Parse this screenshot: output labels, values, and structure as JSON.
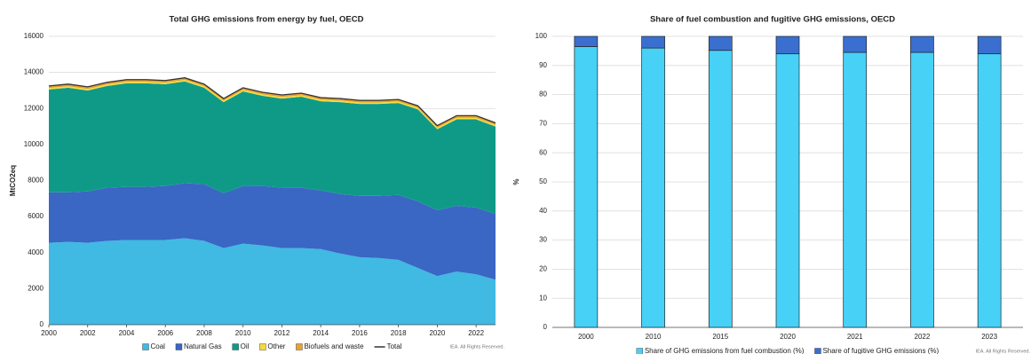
{
  "chart_data": [
    {
      "type": "area",
      "title": "Total GHG emissions from energy by fuel, OECD",
      "y_label": "MtCO2eq",
      "x": [
        2000,
        2001,
        2002,
        2003,
        2004,
        2005,
        2006,
        2007,
        2008,
        2009,
        2010,
        2011,
        2012,
        2013,
        2014,
        2015,
        2016,
        2017,
        2018,
        2019,
        2020,
        2021,
        2022,
        2023
      ],
      "xlim": [
        2000,
        2023
      ],
      "xticks": [
        2000,
        2002,
        2004,
        2006,
        2008,
        2010,
        2012,
        2014,
        2016,
        2018,
        2020,
        2022
      ],
      "ylim": [
        0,
        16000
      ],
      "yticks": [
        0,
        2000,
        4000,
        6000,
        8000,
        10000,
        12000,
        14000,
        16000
      ],
      "grid": true,
      "series": [
        {
          "name": "Coal",
          "color": "#40b9e3",
          "values": [
            4550,
            4600,
            4550,
            4650,
            4700,
            4700,
            4700,
            4800,
            4650,
            4250,
            4500,
            4400,
            4250,
            4250,
            4200,
            3950,
            3750,
            3700,
            3600,
            3150,
            2700,
            2950,
            2800,
            2500
          ]
        },
        {
          "name": "Natural Gas",
          "color": "#3a66c4",
          "values": [
            2800,
            2750,
            2850,
            2950,
            2950,
            2950,
            3000,
            3050,
            3150,
            3050,
            3200,
            3300,
            3350,
            3350,
            3250,
            3300,
            3400,
            3450,
            3600,
            3700,
            3650,
            3650,
            3700,
            3650
          ]
        },
        {
          "name": "Oil",
          "color": "#0f9a88",
          "values": [
            5700,
            5800,
            5600,
            5650,
            5750,
            5750,
            5650,
            5650,
            5350,
            5050,
            5250,
            5000,
            4950,
            5050,
            4950,
            5100,
            5100,
            5100,
            5100,
            5100,
            4500,
            4800,
            4900,
            4850
          ]
        },
        {
          "name": "Other",
          "color": "#f2dc3c",
          "values": [
            80,
            80,
            80,
            80,
            80,
            80,
            80,
            80,
            80,
            80,
            80,
            80,
            80,
            80,
            80,
            80,
            80,
            80,
            80,
            80,
            80,
            80,
            80,
            80
          ]
        },
        {
          "name": "Biofuels and waste",
          "color": "#e8a232",
          "values": [
            120,
            120,
            120,
            120,
            120,
            120,
            120,
            120,
            120,
            120,
            120,
            120,
            120,
            120,
            120,
            120,
            120,
            120,
            120,
            120,
            120,
            120,
            120,
            120
          ]
        },
        {
          "name": "Total",
          "color": "#333333",
          "kind": "line",
          "values": [
            13250,
            13350,
            13200,
            13450,
            13600,
            13600,
            13550,
            13700,
            13350,
            12550,
            13150,
            12900,
            12750,
            12850,
            12600,
            12550,
            12450,
            12450,
            12500,
            12150,
            11050,
            11600,
            11600,
            11200
          ]
        }
      ],
      "note": "IEA. All Rights Reserved."
    },
    {
      "type": "bar",
      "title": "Share of fuel combustion and fugitive GHG emissions, OECD",
      "y_label": "%",
      "categories": [
        "2000",
        "2010",
        "2015",
        "2020",
        "2021",
        "2022",
        "2023"
      ],
      "ylim": [
        0,
        100
      ],
      "yticks": [
        0,
        10,
        20,
        30,
        40,
        50,
        60,
        70,
        80,
        90,
        100
      ],
      "grid": true,
      "series": [
        {
          "name": "Share of GHG emissions from fuel combustion (%)",
          "color": "#47d1f7",
          "values": [
            96.5,
            96,
            95.2,
            94,
            94.5,
            94.5,
            94
          ]
        },
        {
          "name": "Share of fugitive GHG emissions (%)",
          "color": "#3a6fd0",
          "values": [
            3.5,
            4,
            4.8,
            6,
            5.5,
            5.5,
            6
          ]
        }
      ],
      "note": "IEA. All Rights Reserved."
    }
  ]
}
